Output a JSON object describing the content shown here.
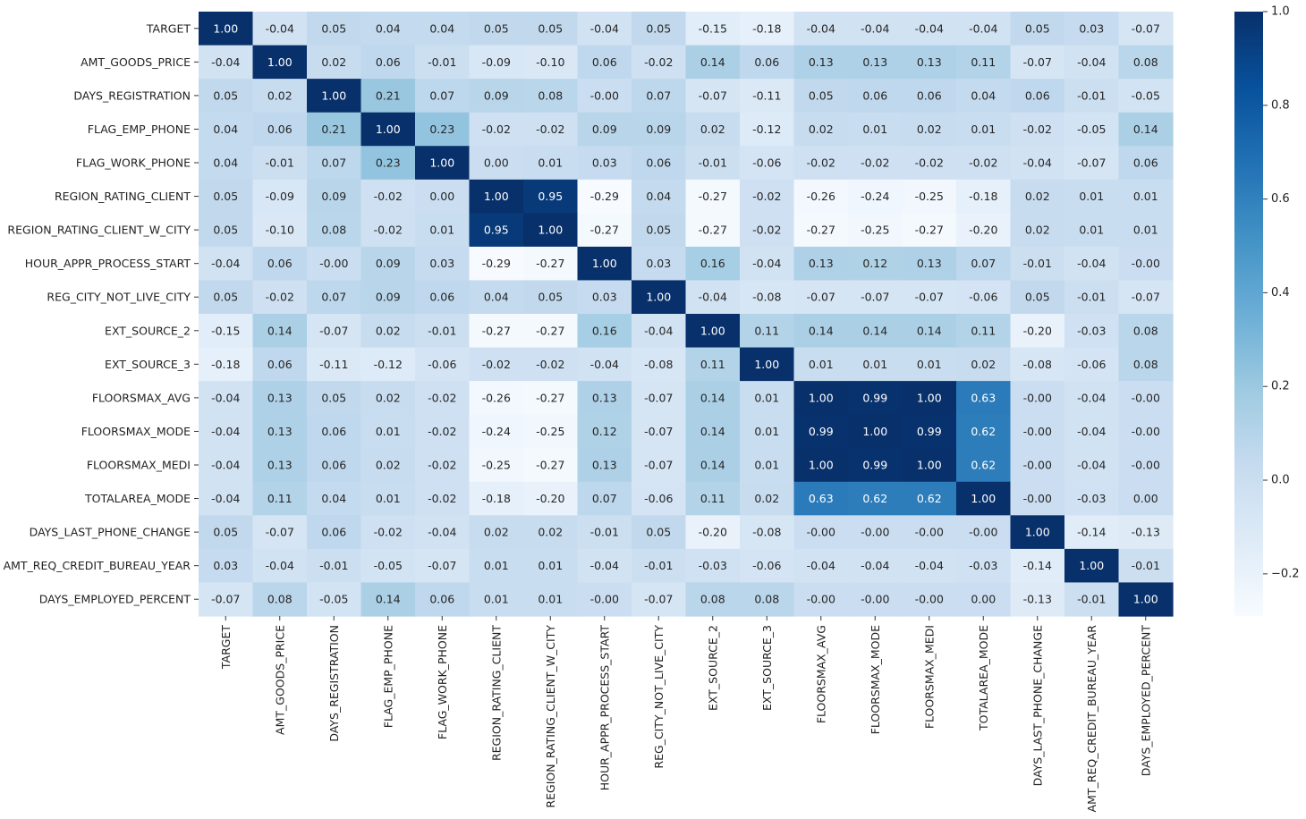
{
  "chart_data": {
    "type": "heatmap",
    "title": "",
    "colormap": "Blues",
    "row_labels": [
      "TARGET",
      "AMT_GOODS_PRICE",
      "DAYS_REGISTRATION",
      "FLAG_EMP_PHONE",
      "FLAG_WORK_PHONE",
      "REGION_RATING_CLIENT",
      "REGION_RATING_CLIENT_W_CITY",
      "HOUR_APPR_PROCESS_START",
      "REG_CITY_NOT_LIVE_CITY",
      "EXT_SOURCE_2",
      "EXT_SOURCE_3",
      "FLOORSMAX_AVG",
      "FLOORSMAX_MODE",
      "FLOORSMAX_MEDI",
      "TOTALAREA_MODE",
      "DAYS_LAST_PHONE_CHANGE",
      "AMT_REQ_CREDIT_BUREAU_YEAR",
      "DAYS_EMPLOYED_PERCENT"
    ],
    "col_labels": [
      "TARGET",
      "AMT_GOODS_PRICE",
      "DAYS_REGISTRATION",
      "FLAG_EMP_PHONE",
      "FLAG_WORK_PHONE",
      "REGION_RATING_CLIENT",
      "REGION_RATING_CLIENT_W_CITY",
      "HOUR_APPR_PROCESS_START",
      "REG_CITY_NOT_LIVE_CITY",
      "EXT_SOURCE_2",
      "EXT_SOURCE_3",
      "FLOORSMAX_AVG",
      "FLOORSMAX_MODE",
      "FLOORSMAX_MEDI",
      "TOTALAREA_MODE",
      "DAYS_LAST_PHONE_CHANGE",
      "AMT_REQ_CREDIT_BUREAU_YEAR",
      "DAYS_EMPLOYED_PERCENT"
    ],
    "values": [
      [
        "1.00",
        "-0.04",
        "0.05",
        "0.04",
        "0.04",
        "0.05",
        "0.05",
        "-0.04",
        "0.05",
        "-0.15",
        "-0.18",
        "-0.04",
        "-0.04",
        "-0.04",
        "-0.04",
        "0.05",
        "0.03",
        "-0.07"
      ],
      [
        "-0.04",
        "1.00",
        "0.02",
        "0.06",
        "-0.01",
        "-0.09",
        "-0.10",
        "0.06",
        "-0.02",
        "0.14",
        "0.06",
        "0.13",
        "0.13",
        "0.13",
        "0.11",
        "-0.07",
        "-0.04",
        "0.08"
      ],
      [
        "0.05",
        "0.02",
        "1.00",
        "0.21",
        "0.07",
        "0.09",
        "0.08",
        "-0.00",
        "0.07",
        "-0.07",
        "-0.11",
        "0.05",
        "0.06",
        "0.06",
        "0.04",
        "0.06",
        "-0.01",
        "-0.05"
      ],
      [
        "0.04",
        "0.06",
        "0.21",
        "1.00",
        "0.23",
        "-0.02",
        "-0.02",
        "0.09",
        "0.09",
        "0.02",
        "-0.12",
        "0.02",
        "0.01",
        "0.02",
        "0.01",
        "-0.02",
        "-0.05",
        "0.14"
      ],
      [
        "0.04",
        "-0.01",
        "0.07",
        "0.23",
        "1.00",
        "0.00",
        "0.01",
        "0.03",
        "0.06",
        "-0.01",
        "-0.06",
        "-0.02",
        "-0.02",
        "-0.02",
        "-0.02",
        "-0.04",
        "-0.07",
        "0.06"
      ],
      [
        "0.05",
        "-0.09",
        "0.09",
        "-0.02",
        "0.00",
        "1.00",
        "0.95",
        "-0.29",
        "0.04",
        "-0.27",
        "-0.02",
        "-0.26",
        "-0.24",
        "-0.25",
        "-0.18",
        "0.02",
        "0.01",
        "0.01"
      ],
      [
        "0.05",
        "-0.10",
        "0.08",
        "-0.02",
        "0.01",
        "0.95",
        "1.00",
        "-0.27",
        "0.05",
        "-0.27",
        "-0.02",
        "-0.27",
        "-0.25",
        "-0.27",
        "-0.20",
        "0.02",
        "0.01",
        "0.01"
      ],
      [
        "-0.04",
        "0.06",
        "-0.00",
        "0.09",
        "0.03",
        "-0.29",
        "-0.27",
        "1.00",
        "0.03",
        "0.16",
        "-0.04",
        "0.13",
        "0.12",
        "0.13",
        "0.07",
        "-0.01",
        "-0.04",
        "-0.00"
      ],
      [
        "0.05",
        "-0.02",
        "0.07",
        "0.09",
        "0.06",
        "0.04",
        "0.05",
        "0.03",
        "1.00",
        "-0.04",
        "-0.08",
        "-0.07",
        "-0.07",
        "-0.07",
        "-0.06",
        "0.05",
        "-0.01",
        "-0.07"
      ],
      [
        "-0.15",
        "0.14",
        "-0.07",
        "0.02",
        "-0.01",
        "-0.27",
        "-0.27",
        "0.16",
        "-0.04",
        "1.00",
        "0.11",
        "0.14",
        "0.14",
        "0.14",
        "0.11",
        "-0.20",
        "-0.03",
        "0.08"
      ],
      [
        "-0.18",
        "0.06",
        "-0.11",
        "-0.12",
        "-0.06",
        "-0.02",
        "-0.02",
        "-0.04",
        "-0.08",
        "0.11",
        "1.00",
        "0.01",
        "0.01",
        "0.01",
        "0.02",
        "-0.08",
        "-0.06",
        "0.08"
      ],
      [
        "-0.04",
        "0.13",
        "0.05",
        "0.02",
        "-0.02",
        "-0.26",
        "-0.27",
        "0.13",
        "-0.07",
        "0.14",
        "0.01",
        "1.00",
        "0.99",
        "1.00",
        "0.63",
        "-0.00",
        "-0.04",
        "-0.00"
      ],
      [
        "-0.04",
        "0.13",
        "0.06",
        "0.01",
        "-0.02",
        "-0.24",
        "-0.25",
        "0.12",
        "-0.07",
        "0.14",
        "0.01",
        "0.99",
        "1.00",
        "0.99",
        "0.62",
        "-0.00",
        "-0.04",
        "-0.00"
      ],
      [
        "-0.04",
        "0.13",
        "0.06",
        "0.02",
        "-0.02",
        "-0.25",
        "-0.27",
        "0.13",
        "-0.07",
        "0.14",
        "0.01",
        "1.00",
        "0.99",
        "1.00",
        "0.62",
        "-0.00",
        "-0.04",
        "-0.00"
      ],
      [
        "-0.04",
        "0.11",
        "0.04",
        "0.01",
        "-0.02",
        "-0.18",
        "-0.20",
        "0.07",
        "-0.06",
        "0.11",
        "0.02",
        "0.63",
        "0.62",
        "0.62",
        "1.00",
        "-0.00",
        "-0.03",
        "0.00"
      ],
      [
        "0.05",
        "-0.07",
        "0.06",
        "-0.02",
        "-0.04",
        "0.02",
        "0.02",
        "-0.01",
        "0.05",
        "-0.20",
        "-0.08",
        "-0.00",
        "-0.00",
        "-0.00",
        "-0.00",
        "1.00",
        "-0.14",
        "-0.13"
      ],
      [
        "0.03",
        "-0.04",
        "-0.01",
        "-0.05",
        "-0.07",
        "0.01",
        "0.01",
        "-0.04",
        "-0.01",
        "-0.03",
        "-0.06",
        "-0.04",
        "-0.04",
        "-0.04",
        "-0.03",
        "-0.14",
        "1.00",
        "-0.01"
      ],
      [
        "-0.07",
        "0.08",
        "-0.05",
        "0.14",
        "0.06",
        "0.01",
        "0.01",
        "-0.00",
        "-0.07",
        "0.08",
        "0.08",
        "-0.00",
        "-0.00",
        "-0.00",
        "0.00",
        "-0.13",
        "-0.01",
        "1.00"
      ]
    ],
    "vmin": -0.29,
    "vmax": 1.0,
    "colorbar": {
      "ticks": [
        -0.2,
        0.0,
        0.2,
        0.4,
        0.6,
        0.8,
        1.0
      ],
      "tick_labels": [
        "−0.2",
        "0.0",
        "0.2",
        "0.4",
        "0.6",
        "0.8",
        "1.0"
      ]
    }
  }
}
